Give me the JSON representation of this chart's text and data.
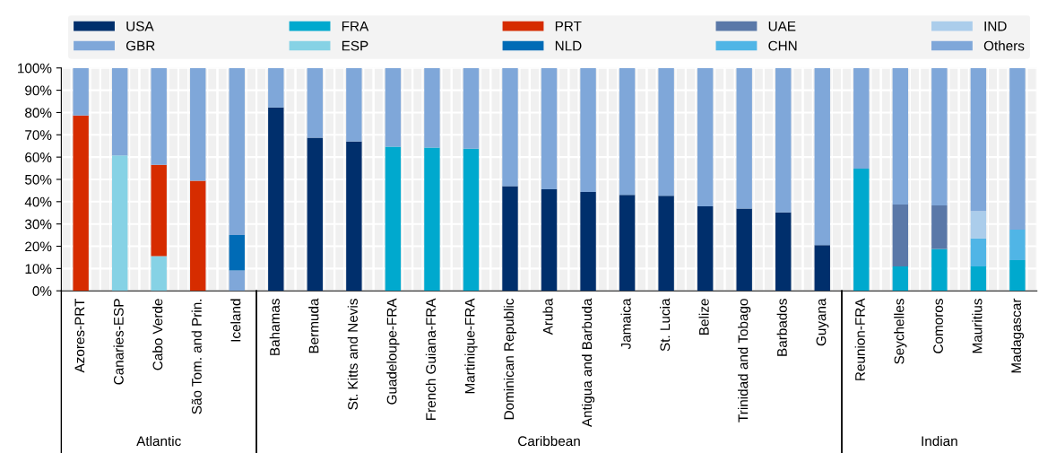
{
  "chart_data": {
    "type": "bar",
    "stacked": true,
    "categories": [
      "Azores-PRT",
      "Canaries-ESP",
      "Cabo Verde",
      "São Tom. and Prin.",
      "Iceland",
      "Bahamas",
      "Bermuda",
      "St. Kitts and Nevis",
      "Guadeloupe-FRA",
      "French Guiana-FRA",
      "Martinique-FRA",
      "Dominican Republic",
      "Aruba",
      "Antigua and Barbuda",
      "Jamaica",
      "St. Lucia",
      "Belize",
      "Trinidad and Tobago",
      "Barbados",
      "Guyana",
      "Reunion-FRA",
      "Seychelles",
      "Comoros",
      "Mauritius",
      "Madagascar"
    ],
    "series": [
      {
        "name": "USA",
        "color": "#002f6c",
        "values": [
          0,
          0,
          0,
          0,
          0,
          82.3,
          68.7,
          67.0,
          0,
          0,
          0,
          47.0,
          45.6,
          44.4,
          43.0,
          42.6,
          37.9,
          36.9,
          35.2,
          20.5,
          0,
          0,
          0,
          0,
          0
        ]
      },
      {
        "name": "GBR",
        "color": "#7fa7d9",
        "values": [
          0,
          0,
          0,
          0,
          9.1,
          0,
          0,
          0,
          0,
          0,
          0,
          0,
          0,
          0,
          0,
          0,
          0,
          0,
          0,
          0,
          0,
          0,
          0,
          0,
          0
        ]
      },
      {
        "name": "FRA",
        "color": "#00a9ce",
        "values": [
          0,
          0,
          0,
          0,
          0,
          0,
          0,
          0,
          64.7,
          64.3,
          63.8,
          0,
          0,
          0,
          0,
          0,
          0,
          0,
          0,
          0,
          54.8,
          11.0,
          18.8,
          11.0,
          13.8
        ]
      },
      {
        "name": "ESP",
        "color": "#86d2e5",
        "values": [
          0,
          60.8,
          15.6,
          0,
          0,
          0,
          0,
          0,
          0,
          0,
          0,
          0,
          0,
          0,
          0,
          0,
          0,
          0,
          0,
          0,
          0,
          0,
          0,
          0,
          0
        ]
      },
      {
        "name": "PRT",
        "color": "#d62c00",
        "values": [
          78.7,
          0,
          40.9,
          49.4,
          0,
          0,
          0,
          0,
          0,
          0,
          0,
          0,
          0,
          0,
          0,
          0,
          0,
          0,
          0,
          0,
          0,
          0,
          0,
          0,
          0
        ]
      },
      {
        "name": "NLD",
        "color": "#006bb6",
        "values": [
          0,
          0,
          0,
          0,
          15.9,
          0,
          0,
          0,
          0,
          0,
          0,
          0,
          0,
          0,
          0,
          0,
          0,
          0,
          0,
          0,
          0,
          0,
          0,
          0,
          0
        ]
      },
      {
        "name": "UAE",
        "color": "#5a78a8",
        "values": [
          0,
          0,
          0,
          0,
          0,
          0,
          0,
          0,
          0,
          0,
          0,
          0,
          0,
          0,
          0,
          0,
          0,
          0,
          0,
          0,
          0,
          27.7,
          19.5,
          0,
          0
        ]
      },
      {
        "name": "CHN",
        "color": "#50b5e6",
        "values": [
          0,
          0,
          0,
          0,
          0,
          0,
          0,
          0,
          0,
          0,
          0,
          0,
          0,
          0,
          0,
          0,
          0,
          0,
          0,
          0,
          0,
          0,
          0,
          12.5,
          13.7
        ]
      },
      {
        "name": "IND",
        "color": "#abcdeb",
        "values": [
          0,
          0,
          0,
          0,
          0,
          0,
          0,
          0,
          0,
          0,
          0,
          0,
          0,
          0,
          0,
          0,
          0,
          0,
          0,
          0,
          0,
          0,
          0,
          12.3,
          0
        ]
      },
      {
        "name": "Others",
        "color": "#7fa7d9",
        "values": [
          21.3,
          39.2,
          43.5,
          50.6,
          75.0,
          17.7,
          31.3,
          33.0,
          35.3,
          35.7,
          36.2,
          53.0,
          54.4,
          55.6,
          57.0,
          57.4,
          62.1,
          63.1,
          64.8,
          79.5,
          45.2,
          61.3,
          61.7,
          64.2,
          72.5
        ]
      }
    ],
    "ylim": [
      0,
      100
    ],
    "yticks": [
      {
        "value": 0,
        "label": "0%"
      },
      {
        "value": 10,
        "label": "10%"
      },
      {
        "value": 20,
        "label": "20%"
      },
      {
        "value": 30,
        "label": "30%"
      },
      {
        "value": 40,
        "label": "40%"
      },
      {
        "value": 50,
        "label": "50%"
      },
      {
        "value": 60,
        "label": "60%"
      },
      {
        "value": 70,
        "label": "70%"
      },
      {
        "value": 80,
        "label": "80%"
      },
      {
        "value": 90,
        "label": "90%"
      },
      {
        "value": 100,
        "label": "100%"
      }
    ],
    "grid": true,
    "legend": "top",
    "annotations": [
      "Atlantic",
      "Caribbean",
      "Indian"
    ]
  }
}
